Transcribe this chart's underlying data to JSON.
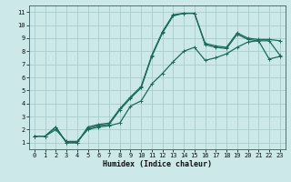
{
  "xlabel": "Humidex (Indice chaleur)",
  "bg_color": "#cce8e8",
  "grid_color": "#a8cccc",
  "line_color": "#1a6b5a",
  "xlim": [
    -0.5,
    23.5
  ],
  "ylim": [
    0.5,
    11.5
  ],
  "xticks": [
    0,
    1,
    2,
    3,
    4,
    5,
    6,
    7,
    8,
    9,
    10,
    11,
    12,
    13,
    14,
    15,
    16,
    17,
    18,
    19,
    20,
    21,
    22,
    23
  ],
  "yticks": [
    1,
    2,
    3,
    4,
    5,
    6,
    7,
    8,
    9,
    10,
    11
  ],
  "line1_x": [
    0,
    1,
    2,
    3,
    4,
    5,
    6,
    7,
    8,
    9,
    10,
    11,
    12,
    13,
    14,
    15,
    16,
    17,
    18,
    19,
    20,
    21,
    22,
    23
  ],
  "line1_y": [
    1.5,
    1.5,
    2.2,
    1.0,
    1.0,
    2.2,
    2.4,
    2.5,
    3.6,
    4.5,
    5.3,
    7.7,
    9.5,
    10.8,
    10.9,
    10.9,
    8.6,
    8.4,
    8.3,
    9.4,
    9.0,
    8.9,
    8.9,
    8.8
  ],
  "line2_x": [
    0,
    1,
    2,
    3,
    4,
    5,
    6,
    7,
    8,
    9,
    10,
    11,
    12,
    13,
    14,
    15,
    16,
    17,
    18,
    19,
    20,
    21,
    22,
    23
  ],
  "line2_y": [
    1.5,
    1.5,
    2.2,
    1.0,
    1.0,
    2.1,
    2.3,
    2.4,
    3.5,
    4.4,
    5.2,
    7.6,
    9.4,
    10.7,
    10.9,
    10.9,
    8.5,
    8.3,
    8.2,
    9.3,
    8.9,
    8.8,
    8.8,
    7.7
  ],
  "line3_x": [
    0,
    1,
    2,
    3,
    4,
    5,
    6,
    7,
    8,
    9,
    10,
    11,
    12,
    13,
    14,
    15,
    16,
    17,
    18,
    19,
    20,
    21,
    22,
    23
  ],
  "line3_y": [
    1.5,
    1.5,
    2.0,
    1.1,
    1.1,
    2.0,
    2.2,
    2.3,
    2.5,
    3.8,
    4.2,
    5.5,
    6.3,
    7.2,
    8.0,
    8.3,
    7.3,
    7.5,
    7.8,
    8.3,
    8.7,
    8.8,
    7.4,
    7.6
  ],
  "marker_size": 2.5,
  "line_width": 0.9,
  "tick_fontsize": 5.0,
  "xlabel_fontsize": 6.0
}
